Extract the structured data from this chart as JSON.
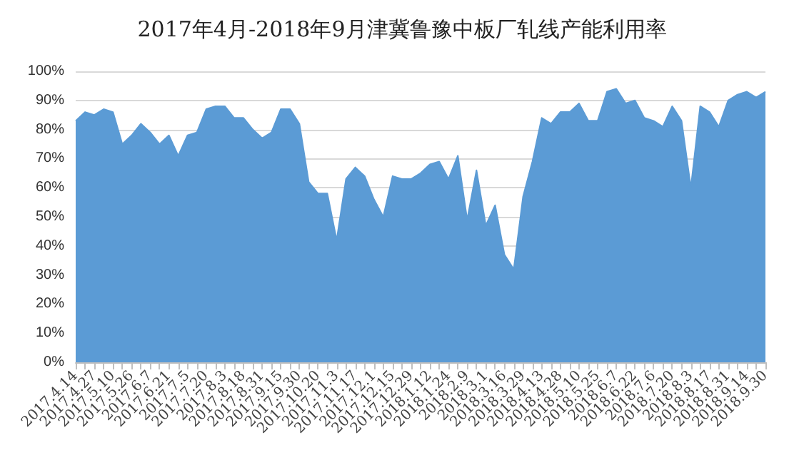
{
  "chart_data": {
    "type": "area",
    "title": "2017年4月-2018年9月津冀鲁豫中板厂轧线产能利用率",
    "categories": [
      "2017.4.14",
      null,
      "2017.4.27",
      null,
      "2017.5.10",
      null,
      "2017.5.26",
      null,
      "2017.6.7",
      null,
      "2017.6.21",
      null,
      "2017.7.5",
      null,
      "2017.7.20",
      null,
      "2017.8.3",
      null,
      "2017.8.18",
      null,
      "2017.8.31",
      null,
      "2017.9.15",
      null,
      "2017.9.30",
      null,
      "2017.10.20",
      null,
      "2017.11.3",
      null,
      "2017.11.17",
      null,
      "2017.12.1",
      null,
      "2017.12.15",
      null,
      "2017.12.29",
      null,
      "2018.1.12",
      null,
      "2018.1.24",
      null,
      "2018.2.9",
      null,
      "2018.3.1",
      null,
      "2018.3.16",
      null,
      "2018.3.29",
      null,
      "2018.4.13",
      null,
      "2018.4.28",
      null,
      "2018.5.10",
      null,
      "2018.5.25",
      null,
      "2018.6.7",
      null,
      "2018.6.22",
      null,
      "2018.7.6",
      null,
      "2018.7.20",
      null,
      "2018.8.3",
      null,
      "2018.8.17",
      null,
      "2018.8.31",
      null,
      "2018.9.14",
      null,
      "2018.9.30"
    ],
    "series": [
      {
        "color": "#5b9bd5",
        "values": [
          83,
          86,
          85,
          87,
          86,
          75,
          78,
          82,
          79,
          75,
          78,
          71,
          78,
          79,
          87,
          88,
          88,
          84,
          84,
          80,
          77,
          79,
          87,
          87,
          82,
          62,
          58,
          58,
          42,
          63,
          67,
          64,
          56,
          50,
          64,
          63,
          63,
          65,
          68,
          69,
          63,
          71,
          49,
          66,
          47,
          54,
          37,
          32,
          57,
          69,
          84,
          82,
          86,
          86,
          89,
          83,
          83,
          93,
          94,
          89,
          90,
          84,
          83,
          81,
          88,
          83,
          60,
          88,
          86,
          81,
          90,
          92,
          93,
          91,
          93
        ]
      }
    ],
    "ylim": [
      0,
      100
    ],
    "yticks": [
      {
        "value": 0,
        "label": "0%"
      },
      {
        "value": 10,
        "label": "10%"
      },
      {
        "value": 20,
        "label": "20%"
      },
      {
        "value": 30,
        "label": "30%"
      },
      {
        "value": 40,
        "label": "40%"
      },
      {
        "value": 50,
        "label": "50%"
      },
      {
        "value": 60,
        "label": "60%"
      },
      {
        "value": 70,
        "label": "70%"
      },
      {
        "value": 80,
        "label": "80%"
      },
      {
        "value": 90,
        "label": "90%"
      },
      {
        "value": 100,
        "label": "100%"
      }
    ],
    "grid": "y"
  }
}
